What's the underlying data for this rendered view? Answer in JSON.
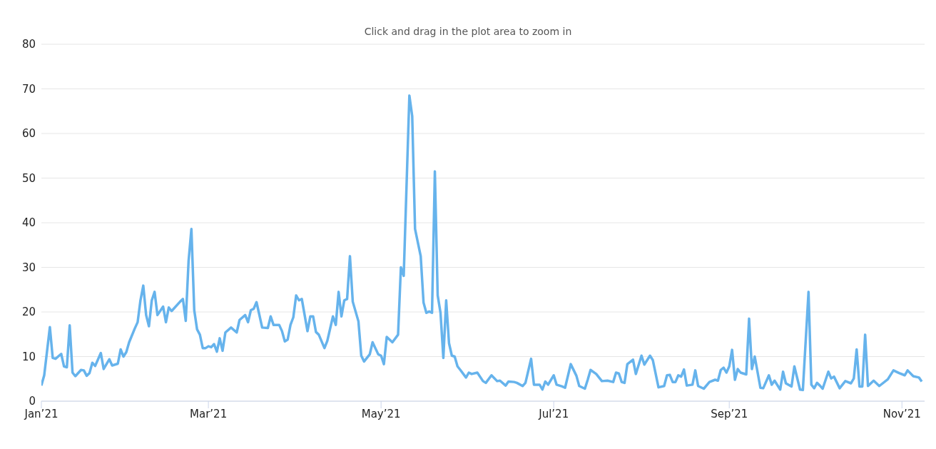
{
  "chart_data": {
    "type": "line",
    "subtitle": "Click and drag in the plot area to zoom in",
    "x": [
      "2021-01-01",
      "2021-01-02",
      "2021-01-04",
      "2021-01-05",
      "2021-01-06",
      "2021-01-08",
      "2021-01-09",
      "2021-01-10",
      "2021-01-11",
      "2021-01-12",
      "2021-01-13",
      "2021-01-15",
      "2021-01-16",
      "2021-01-17",
      "2021-01-18",
      "2021-01-19",
      "2021-01-20",
      "2021-01-22",
      "2021-01-23",
      "2021-01-25",
      "2021-01-26",
      "2021-01-28",
      "2021-01-29",
      "2021-01-30",
      "2021-01-31",
      "2021-02-01",
      "2021-02-03",
      "2021-02-04",
      "2021-02-05",
      "2021-02-06",
      "2021-02-07",
      "2021-02-08",
      "2021-02-09",
      "2021-02-10",
      "2021-02-11",
      "2021-02-13",
      "2021-02-14",
      "2021-02-15",
      "2021-02-16",
      "2021-02-19",
      "2021-02-20",
      "2021-02-21",
      "2021-02-22",
      "2021-02-23",
      "2021-02-24",
      "2021-02-25",
      "2021-02-26",
      "2021-02-27",
      "2021-02-28",
      "2021-03-01",
      "2021-03-02",
      "2021-03-03",
      "2021-03-04",
      "2021-03-05",
      "2021-03-06",
      "2021-03-07",
      "2021-03-09",
      "2021-03-11",
      "2021-03-12",
      "2021-03-14",
      "2021-03-15",
      "2021-03-16",
      "2021-03-17",
      "2021-03-18",
      "2021-03-20",
      "2021-03-22",
      "2021-03-23",
      "2021-03-24",
      "2021-03-26",
      "2021-03-27",
      "2021-03-28",
      "2021-03-29",
      "2021-03-30",
      "2021-03-31",
      "2021-04-01",
      "2021-04-02",
      "2021-04-03",
      "2021-04-05",
      "2021-04-06",
      "2021-04-07",
      "2021-04-08",
      "2021-04-09",
      "2021-04-11",
      "2021-04-12",
      "2021-04-14",
      "2021-04-15",
      "2021-04-16",
      "2021-04-17",
      "2021-04-18",
      "2021-04-19",
      "2021-04-20",
      "2021-04-21",
      "2021-04-23",
      "2021-04-24",
      "2021-04-25",
      "2021-04-27",
      "2021-04-28",
      "2021-04-30",
      "2021-05-01",
      "2021-05-02",
      "2021-05-03",
      "2021-05-05",
      "2021-05-07",
      "2021-05-08",
      "2021-05-09",
      "2021-05-11",
      "2021-05-12",
      "2021-05-13",
      "2021-05-15",
      "2021-05-16",
      "2021-05-17",
      "2021-05-18",
      "2021-05-19",
      "2021-05-20",
      "2021-05-21",
      "2021-05-22",
      "2021-05-23",
      "2021-05-24",
      "2021-05-25",
      "2021-05-26",
      "2021-05-27",
      "2021-05-28",
      "2021-05-29",
      "2021-05-31",
      "2021-06-01",
      "2021-06-02",
      "2021-06-04",
      "2021-06-06",
      "2021-06-07",
      "2021-06-09",
      "2021-06-11",
      "2021-06-12",
      "2021-06-14",
      "2021-06-15",
      "2021-06-17",
      "2021-06-18",
      "2021-06-20",
      "2021-06-21",
      "2021-06-23",
      "2021-06-24",
      "2021-06-26",
      "2021-06-27",
      "2021-06-28",
      "2021-06-29",
      "2021-07-01",
      "2021-07-02",
      "2021-07-04",
      "2021-07-05",
      "2021-07-07",
      "2021-07-09",
      "2021-07-10",
      "2021-07-12",
      "2021-07-13",
      "2021-07-14",
      "2021-07-16",
      "2021-07-18",
      "2021-07-20",
      "2021-07-22",
      "2021-07-23",
      "2021-07-24",
      "2021-07-25",
      "2021-07-26",
      "2021-07-27",
      "2021-07-29",
      "2021-07-30",
      "2021-08-01",
      "2021-08-02",
      "2021-08-04",
      "2021-08-05",
      "2021-08-07",
      "2021-08-09",
      "2021-08-10",
      "2021-08-11",
      "2021-08-12",
      "2021-08-13",
      "2021-08-14",
      "2021-08-15",
      "2021-08-16",
      "2021-08-17",
      "2021-08-19",
      "2021-08-20",
      "2021-08-21",
      "2021-08-23",
      "2021-08-25",
      "2021-08-27",
      "2021-08-28",
      "2021-08-29",
      "2021-08-30",
      "2021-08-31",
      "2021-09-01",
      "2021-09-02",
      "2021-09-03",
      "2021-09-04",
      "2021-09-05",
      "2021-09-07",
      "2021-09-08",
      "2021-09-09",
      "2021-09-10",
      "2021-09-12",
      "2021-09-13",
      "2021-09-15",
      "2021-09-16",
      "2021-09-17",
      "2021-09-19",
      "2021-09-20",
      "2021-09-21",
      "2021-09-23",
      "2021-09-24",
      "2021-09-26",
      "2021-09-27",
      "2021-09-29",
      "2021-09-30",
      "2021-10-01",
      "2021-10-02",
      "2021-10-03",
      "2021-10-04",
      "2021-10-06",
      "2021-10-07",
      "2021-10-08",
      "2021-10-10",
      "2021-10-12",
      "2021-10-14",
      "2021-10-15",
      "2021-10-16",
      "2021-10-17",
      "2021-10-18",
      "2021-10-19",
      "2021-10-20",
      "2021-10-22",
      "2021-10-24",
      "2021-10-27",
      "2021-10-29",
      "2021-10-31",
      "2021-11-02",
      "2021-11-03",
      "2021-11-05",
      "2021-11-07",
      "2021-11-08"
    ],
    "values": [
      3.5,
      5.8,
      16.6,
      9.7,
      9.5,
      10.6,
      7.8,
      7.6,
      17,
      6.4,
      5.6,
      7.0,
      6.9,
      5.7,
      6.3,
      8.6,
      7.9,
      10.8,
      7.2,
      9.4,
      8.0,
      8.4,
      11.6,
      10.0,
      11,
      13.2,
      16.3,
      17.7,
      22.6,
      25.9,
      19.3,
      16.8,
      22.6,
      24.5,
      19.3,
      21.2,
      17.7,
      21,
      20.2,
      22.3,
      22.9,
      18,
      31.4,
      38.6,
      20.4,
      16.1,
      14.9,
      11.9,
      11.9,
      12.3,
      12.1,
      12.8,
      11.1,
      14.1,
      11.3,
      15.4,
      16.5,
      15.4,
      18.2,
      19.3,
      17.7,
      20.4,
      20.7,
      22.2,
      16.5,
      16.4,
      19,
      17.1,
      17.1,
      15.7,
      13.4,
      13.8,
      17.1,
      18.8,
      23.7,
      22.6,
      22.9,
      15.7,
      19,
      19,
      15.5,
      14.9,
      11.9,
      13.5,
      19.0,
      17.1,
      24.5,
      19,
      22.6,
      22.9,
      32.5,
      22.3,
      17.9,
      10.2,
      8.9,
      10.5,
      13.2,
      10.5,
      10.2,
      8.3,
      14.4,
      13.2,
      14.9,
      30,
      28.1,
      68.5,
      63.9,
      38.6,
      32.5,
      22.1,
      19.8,
      20.1,
      19.8,
      51.5,
      23.7,
      19.8,
      9.7,
      22.6,
      13.0,
      10.2,
      10.0,
      7.8,
      7.0,
      5.3,
      6.4,
      6.1,
      6.4,
      4.5,
      4.1,
      5.8,
      4.5,
      4.6,
      3.5,
      4.4,
      4.3,
      4.1,
      3.4,
      4.1,
      9.5,
      3.7,
      3.7,
      2.6,
      4.4,
      3.7,
      5.8,
      3.7,
      3.3,
      3.0,
      8.3,
      5.7,
      3.4,
      2.8,
      4.8,
      7.0,
      6.1,
      4.5,
      4.6,
      4.3,
      6.4,
      6.2,
      4.3,
      4.1,
      8.3,
      9.3,
      6.1,
      10.2,
      8.2,
      10.2,
      9.2,
      3.1,
      3.4,
      5.8,
      5.9,
      4.3,
      4.3,
      5.8,
      5.5,
      7.1,
      3.5,
      3.7,
      6.9,
      3.4,
      2.8,
      4.3,
      4.8,
      4.6,
      7.0,
      7.5,
      6.4,
      7.8,
      11.5,
      4.8,
      7.2,
      6.4,
      6.0,
      18.5,
      7.2,
      10,
      3.0,
      2.9,
      5.8,
      3.7,
      4.6,
      2.6,
      6.6,
      4.0,
      3.3,
      7.8,
      2.6,
      2.5,
      24.5,
      3.7,
      2.9,
      4.1,
      3.5,
      2.8,
      6.6,
      5.1,
      5.5,
      2.9,
      4.5,
      4.0,
      5.1,
      11.6,
      3.3,
      3.3,
      14.9,
      3.4,
      4.6,
      3.4,
      4.9,
      6.9,
      6.3,
      5.8,
      6.9,
      5.6,
      5.3,
      4.4
    ],
    "color": "#66b3ec",
    "xlim": [
      "2021-01-01",
      "2021-11-09"
    ],
    "xticks": [
      {
        "value": "2021-01-01",
        "label": "Jan’21"
      },
      {
        "value": "2021-03-01",
        "label": "Mar’21"
      },
      {
        "value": "2021-05-01",
        "label": "May’21"
      },
      {
        "value": "2021-07-01",
        "label": "Jul’21"
      },
      {
        "value": "2021-09-01",
        "label": "Sep’21"
      },
      {
        "value": "2021-11-01",
        "label": "Nov’21"
      }
    ],
    "ylim": [
      0,
      80
    ],
    "yticks": [
      0,
      10,
      20,
      30,
      40,
      50,
      60,
      70,
      80
    ],
    "grid": "y",
    "legend": false,
    "marker": "none",
    "line_style": "solid"
  }
}
